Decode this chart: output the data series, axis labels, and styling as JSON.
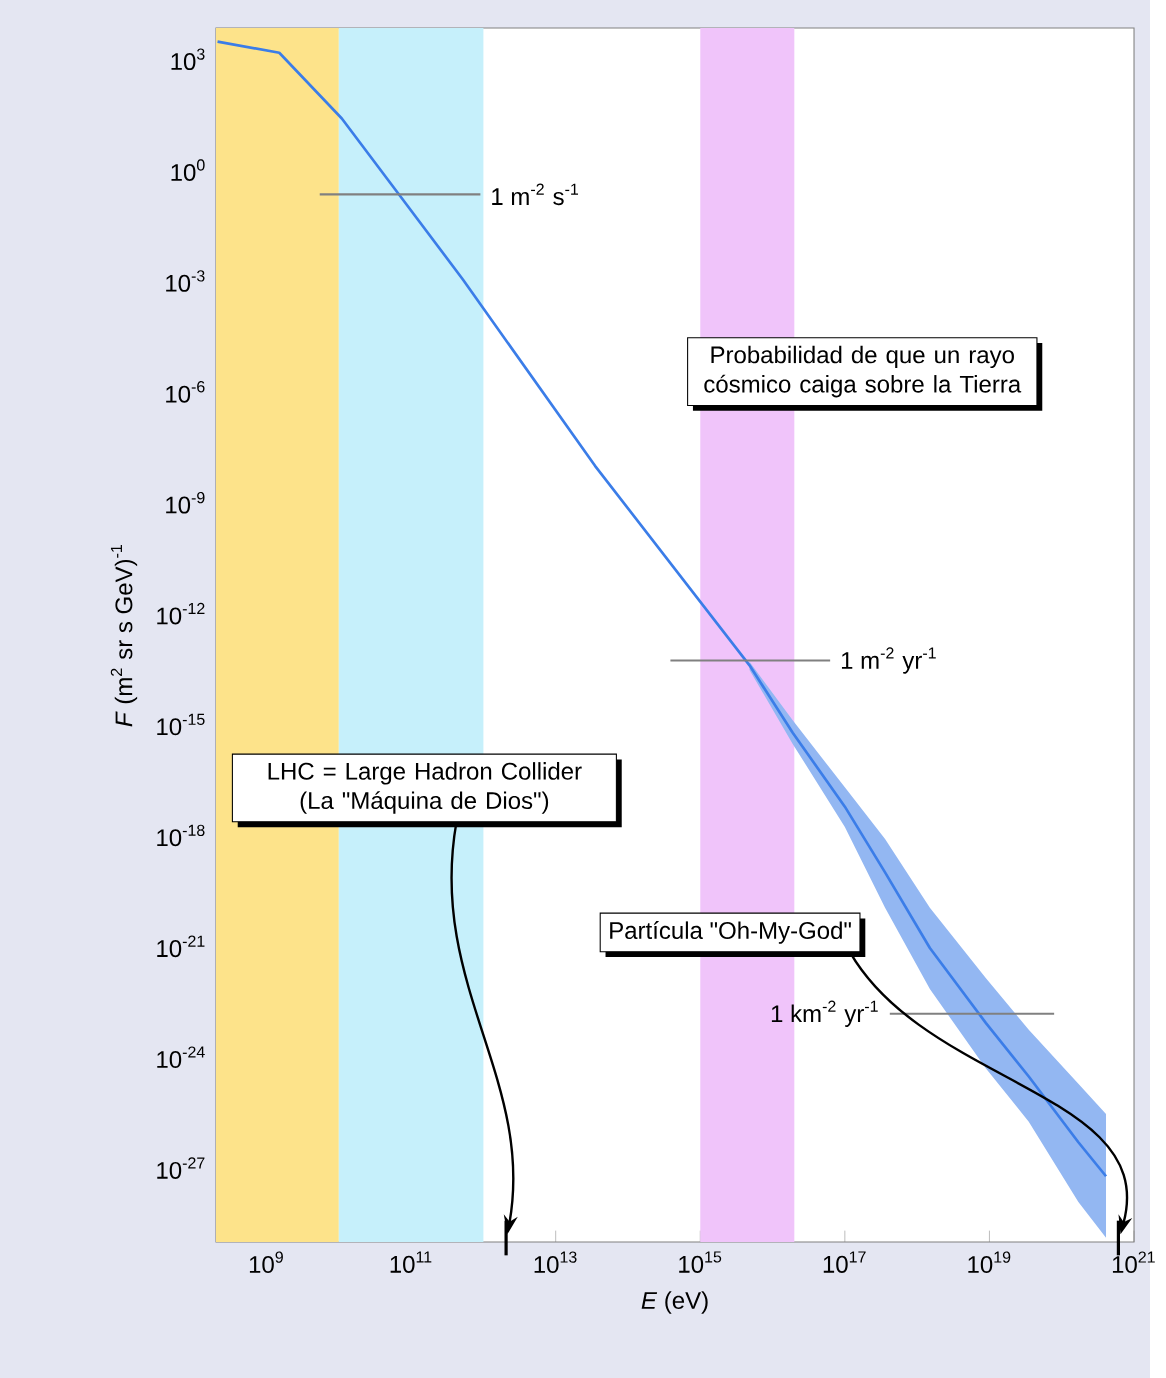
{
  "chart_data": {
    "type": "line",
    "xlabel": "*E* (eV)",
    "ylabel": "*F* (m$^{2}$ sr s GeV)$^{-1}$",
    "log": "xy",
    "line_style": "solid",
    "xlim": [
      200000000.0,
      1e+21
    ],
    "ylim": [
      1e-29,
      7000.0
    ],
    "xticks": [
      {
        "value": 1000000000.0,
        "label": "10$^{9}$"
      },
      {
        "value": 100000000000.0,
        "label": "10$^{11}$"
      },
      {
        "value": 10000000000000.0,
        "label": "10$^{13}$"
      },
      {
        "value": 1000000000000000.0,
        "label": "10$^{15}$"
      },
      {
        "value": 1e+17,
        "label": "10$^{17}$"
      },
      {
        "value": 1e+19,
        "label": "10$^{19}$"
      },
      {
        "value": 1e+21,
        "label": "10$^{21}$"
      }
    ],
    "yticks": [
      {
        "value": 1000.0,
        "label": "10$^{3}$"
      },
      {
        "value": 1,
        "label": "10$^{0}$"
      },
      {
        "value": 0.001,
        "label": "10$^{-3}$"
      },
      {
        "value": 1e-06,
        "label": "10$^{-6}$"
      },
      {
        "value": 1e-09,
        "label": "10$^{-9}$"
      },
      {
        "value": 1e-12,
        "label": "10$^{-12}$"
      },
      {
        "value": 1e-15,
        "label": "10$^{-15}$"
      },
      {
        "value": 1e-18,
        "label": "10$^{-18}$"
      },
      {
        "value": 1e-21,
        "label": "10$^{-21}$"
      },
      {
        "value": 1e-24,
        "label": "10$^{-24}$"
      },
      {
        "value": 1e-27,
        "label": "10$^{-27}$"
      }
    ],
    "x": [
      210000000.0,
      1500000000.0,
      11000000000.0,
      68000000000.0,
      520000000000.0,
      35000000000000.0,
      4800000000000000.0,
      1.9e+16,
      1e+17,
      3.6e+17,
      1.5e+18,
      8.9e+18,
      3.5e+19,
      1.7e+20,
      4.1e+20
    ],
    "series": [
      {
        "color": "#3b7de8",
        "values": [
          3000,
          1500,
          25,
          0.22,
          0.0011,
          1e-08,
          4e-14,
          6e-16,
          6e-18,
          1e-19,
          9e-22,
          8.5e-24,
          3e-25,
          5e-27,
          6e-28
        ],
        "lower": [
          null,
          null,
          null,
          null,
          null,
          null,
          3e-14,
          3e-16,
          1.7e-18,
          1.1e-20,
          7e-23,
          5e-25,
          1.8e-26,
          1.2e-28,
          1.3e-29
        ],
        "upper": [
          null,
          null,
          null,
          null,
          null,
          null,
          5e-14,
          1.3e-15,
          2e-17,
          8e-19,
          1.1e-20,
          1.4e-22,
          5.5e-24,
          1.9e-25,
          2.9e-26
        ]
      }
    ],
    "bands": [
      {
        "axis": "x",
        "from": 200000000.0,
        "to": 10000000000.0,
        "color": "#fde38a"
      },
      {
        "axis": "x",
        "from": 10000000000.0,
        "to": 1000000000000.0,
        "color": "#c6f0fb"
      },
      {
        "axis": "x",
        "from": 1000000000000000.0,
        "to": 2e+16,
        "color": "#f0c4fa"
      }
    ],
    "annotations": [
      "1 m$^{-2}$ s$^{-1}$",
      "1 m$^{-2}$ yr$^{-1}$",
      "1 km$^{-2}$ yr$^{-1}$",
      "Probabilidad de que un rayo cósmico caiga sobre la Tierra",
      "LHC = Large Hadron Collider (La \"Máquina de Dios\")",
      "Partícula \"Oh-My-God\""
    ]
  }
}
